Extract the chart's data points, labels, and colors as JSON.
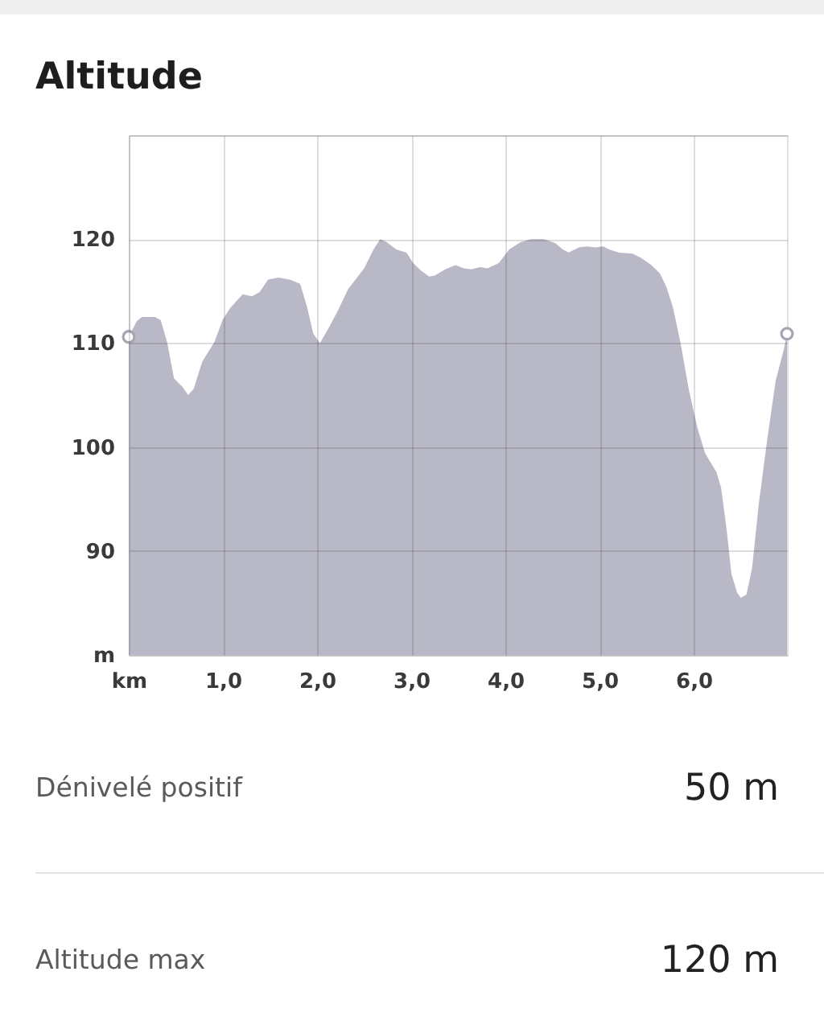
{
  "chart_data": {
    "type": "area",
    "title": "Altitude",
    "series": [
      {
        "color": "#b9b8c7",
        "x": [
          0,
          0.085,
          0.14,
          0.28,
          0.34,
          0.41,
          0.48,
          0.57,
          0.63,
          0.69,
          0.78,
          0.91,
          1.0,
          1.08,
          1.21,
          1.31,
          1.39,
          1.48,
          1.59,
          1.71,
          1.82,
          1.89,
          1.96,
          2.03,
          2.12,
          2.22,
          2.33,
          2.5,
          2.6,
          2.67,
          2.74,
          2.84,
          2.95,
          3.02,
          3.1,
          3.19,
          3.25,
          3.36,
          3.47,
          3.56,
          3.64,
          3.73,
          3.81,
          3.93,
          4.04,
          4.16,
          4.27,
          4.41,
          4.53,
          4.61,
          4.67,
          4.78,
          4.87,
          4.95,
          5.04,
          5.1,
          5.21,
          5.35,
          5.44,
          5.55,
          5.64,
          5.71,
          5.78,
          5.86,
          5.95,
          6.04,
          6.12,
          6.24,
          6.29,
          6.35,
          6.4,
          6.46,
          6.5,
          6.56,
          6.62,
          6.69,
          6.78,
          6.87,
          6.96,
          6.99
        ],
        "values": [
          110.6,
          112.1,
          112.5,
          112.5,
          112.2,
          110.0,
          106.6,
          105.8,
          105.0,
          105.6,
          108.2,
          110.1,
          112.3,
          113.4,
          114.7,
          114.5,
          114.9,
          116.1,
          116.3,
          116.1,
          115.7,
          113.6,
          110.9,
          110.0,
          111.4,
          113.1,
          115.2,
          117.2,
          119.0,
          120.0,
          119.7,
          119.0,
          118.7,
          117.7,
          117.0,
          116.4,
          116.5,
          117.1,
          117.5,
          117.2,
          117.1,
          117.3,
          117.2,
          117.7,
          119.0,
          119.7,
          120.0,
          120.0,
          119.6,
          119.0,
          118.7,
          119.2,
          119.3,
          119.2,
          119.3,
          119.0,
          118.7,
          118.6,
          118.2,
          117.5,
          116.7,
          115.4,
          113.4,
          110.0,
          105.4,
          101.8,
          99.4,
          97.6,
          96.1,
          92.0,
          87.8,
          86.0,
          85.5,
          85.8,
          88.4,
          94.5,
          100.7,
          106.4,
          109.5,
          110.9
        ]
      },
      {
        "type": "scatter",
        "color": "#a6a5b2",
        "marker": "circle",
        "x": [
          0,
          6.99
        ],
        "values": [
          110.6,
          110.9
        ]
      }
    ],
    "xlim": [
      0,
      6.99
    ],
    "xticks": [
      {
        "value": 0,
        "label": "km"
      },
      {
        "value": 1,
        "label": "1,0"
      },
      {
        "value": 2,
        "label": "2,0"
      },
      {
        "value": 3,
        "label": "3,0"
      },
      {
        "value": 4,
        "label": "4,0"
      },
      {
        "value": 5,
        "label": "5,0"
      },
      {
        "value": 6,
        "label": "6,0"
      }
    ],
    "ylim": [
      80,
      130
    ],
    "yticks": [
      {
        "value": 80,
        "label": "m"
      },
      90,
      100,
      110,
      120,
      {
        "value": 130,
        "label": null
      }
    ],
    "grid": true,
    "annotations": [
      "Dénivelé positif",
      "50 m",
      "Altitude max",
      "120 m"
    ]
  }
}
